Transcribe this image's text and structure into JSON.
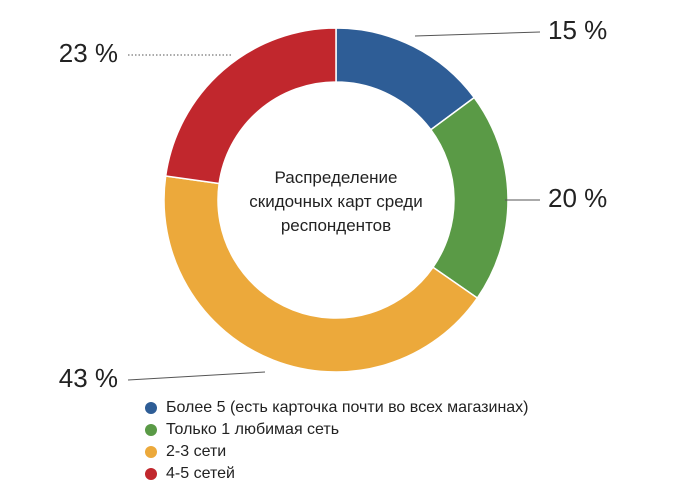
{
  "chart_data": {
    "type": "donut",
    "title": "Распределение скидочных карт среди респондентов",
    "categories": [
      "Более 5 (есть карточка почти во всех магазинах)",
      "Только 1 любимая сеть",
      "2-3 сети",
      "4-5 сетей"
    ],
    "values": [
      15,
      20,
      43,
      23
    ],
    "value_labels": [
      "15 %",
      "20 %",
      "43 %",
      "23 %"
    ],
    "colors": [
      "#2e5d96",
      "#5a9a46",
      "#eca93b",
      "#c1272d"
    ]
  }
}
